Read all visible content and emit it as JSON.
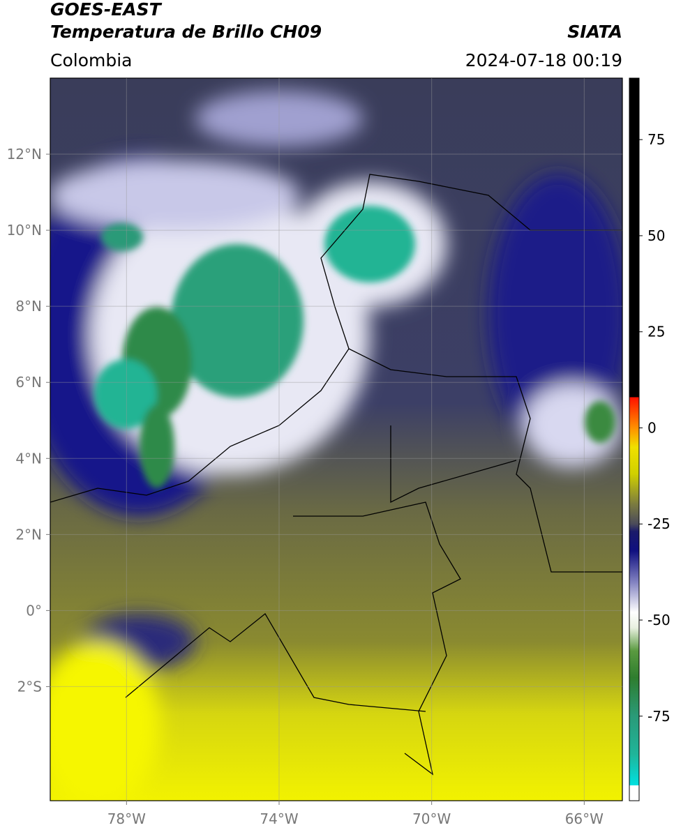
{
  "header": {
    "title": "GOES-EAST",
    "subtitle": "Temperatura de Brillo CH09",
    "source": "SIATA",
    "region": "Colombia",
    "datetime": "2024-07-18 00:19"
  },
  "map": {
    "xlim": [
      -80,
      -65
    ],
    "ylim": [
      -5,
      14
    ],
    "xticks": [
      {
        "value": -78,
        "label": "78°W"
      },
      {
        "value": -74,
        "label": "74°W"
      },
      {
        "value": -70,
        "label": "70°W"
      },
      {
        "value": -66,
        "label": "66°W"
      }
    ],
    "yticks": [
      {
        "value": 12,
        "label": "12°N"
      },
      {
        "value": 10,
        "label": "10°N"
      },
      {
        "value": 8,
        "label": "8°N"
      },
      {
        "value": 6,
        "label": "6°N"
      },
      {
        "value": 4,
        "label": "4°N"
      },
      {
        "value": 2,
        "label": "2°N"
      },
      {
        "value": 0,
        "label": "0°"
      },
      {
        "value": -2,
        "label": "2°S"
      }
    ],
    "grid": true
  },
  "colorbar": {
    "lim": [
      -97,
      91
    ],
    "ticks": [
      75,
      50,
      25,
      0,
      -25,
      -50,
      -75
    ],
    "stops": [
      {
        "value": -97,
        "color": "#ffffff"
      },
      {
        "value": -93,
        "color": "#ffffff"
      },
      {
        "value": -93,
        "color": "#00e0e0"
      },
      {
        "value": -85,
        "color": "#1fb59a"
      },
      {
        "value": -75,
        "color": "#2a9a78"
      },
      {
        "value": -65,
        "color": "#2e7d2e"
      },
      {
        "value": -58,
        "color": "#5a9a40"
      },
      {
        "value": -52,
        "color": "#e8f0e0"
      },
      {
        "value": -48,
        "color": "#ffffff"
      },
      {
        "value": -40,
        "color": "#8080c0"
      },
      {
        "value": -32,
        "color": "#101080"
      },
      {
        "value": -27,
        "color": "#1a1a6a"
      },
      {
        "value": -25,
        "color": "#4a4a5a"
      },
      {
        "value": -20,
        "color": "#7a7a40"
      },
      {
        "value": -12,
        "color": "#d0d000"
      },
      {
        "value": -5,
        "color": "#f0e000"
      },
      {
        "value": 0,
        "color": "#ff9000"
      },
      {
        "value": 8,
        "color": "#ff1000"
      },
      {
        "value": 8,
        "color": "#000000"
      },
      {
        "value": 91,
        "color": "#000000"
      }
    ]
  }
}
